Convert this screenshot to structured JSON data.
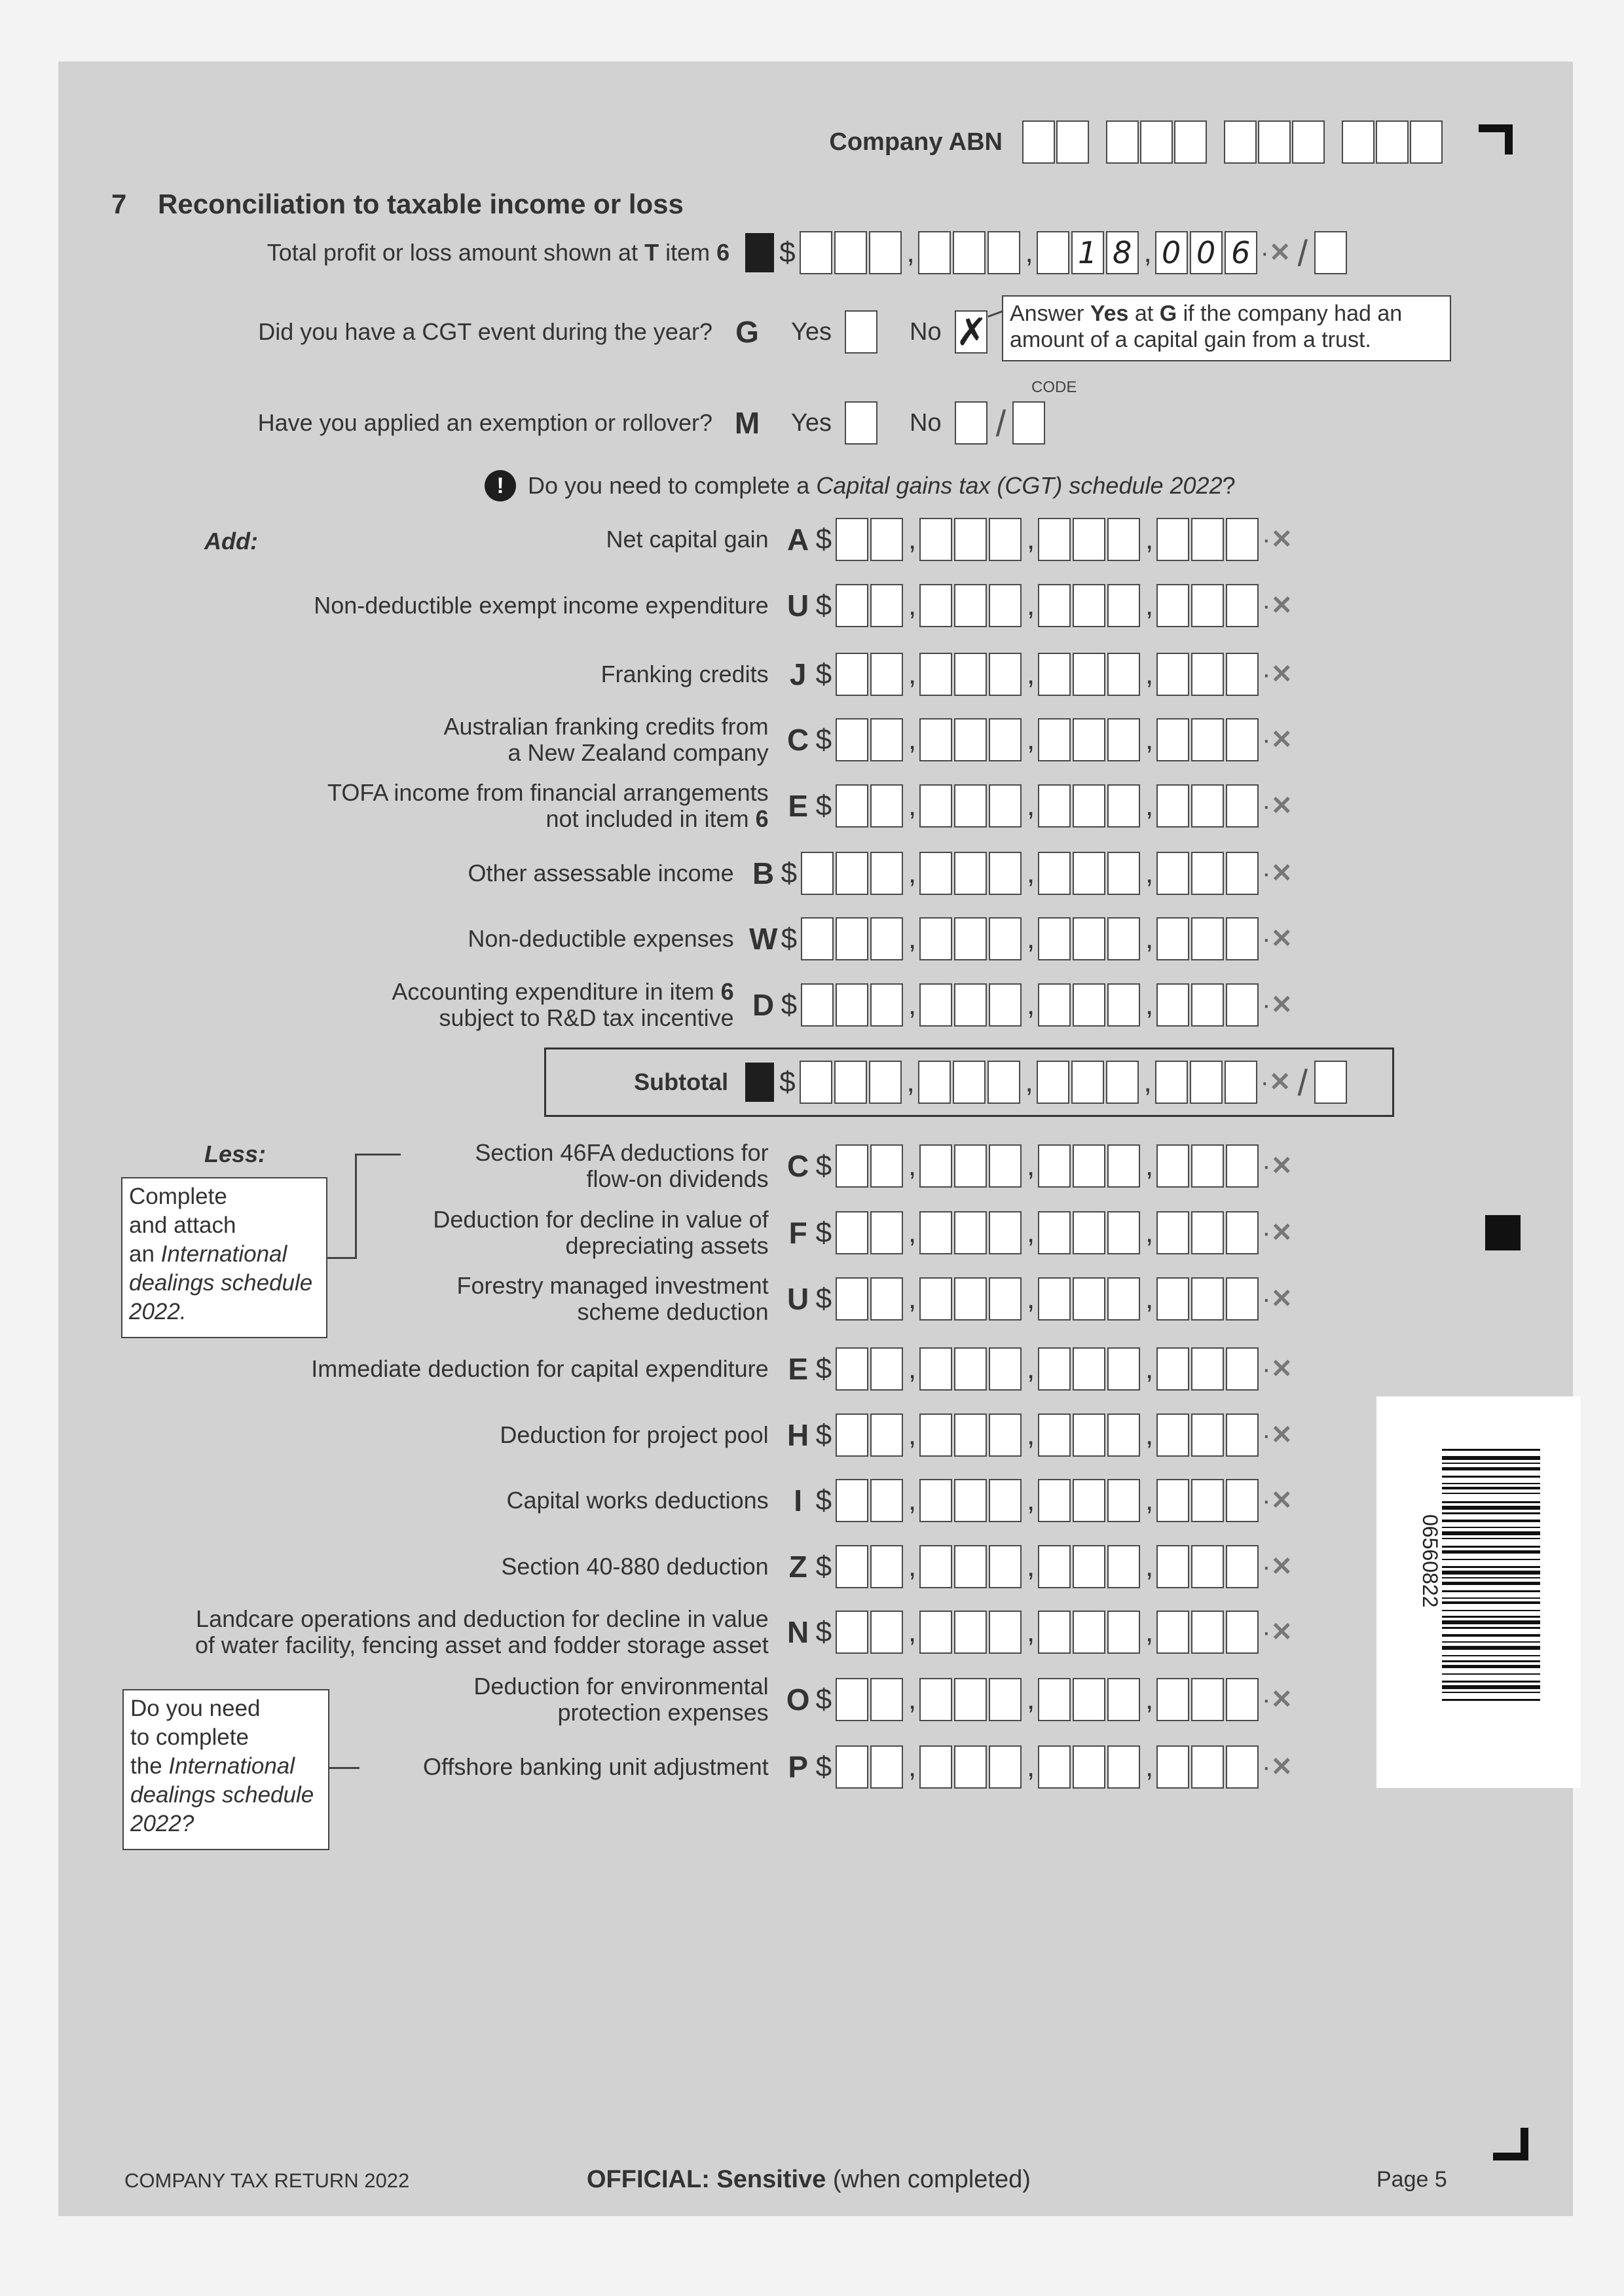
{
  "header": {
    "abn_label": "Company ABN",
    "abn_groups": [
      2,
      3,
      3,
      3
    ]
  },
  "section": {
    "number": "7",
    "title": "Reconciliation to taxable income or loss"
  },
  "total_profit": {
    "label_a": "Total profit or loss amount shown at ",
    "label_b": "T",
    "label_c": " item ",
    "label_d": "6",
    "digits": [
      [
        "",
        "",
        ""
      ],
      [
        "",
        "",
        ""
      ],
      [
        "",
        "1",
        "8"
      ],
      [
        "0",
        "0",
        "6"
      ]
    ],
    "value": "18,006"
  },
  "cgt_event": {
    "question": "Did you have a CGT event during the year?",
    "letter": "G",
    "yes": "Yes",
    "no": "No",
    "no_mark": "✗",
    "selected": "No",
    "note_a": "Answer ",
    "note_b": "Yes",
    "note_c": " at ",
    "note_d": "G",
    "note_e": " if the company had an amount of a capital gain from a trust."
  },
  "exemption": {
    "question": "Have you applied an exemption or rollover?",
    "letter": "M",
    "yes": "Yes",
    "no": "No",
    "code_label": "CODE"
  },
  "cgt_info": {
    "icon": "exclamation-circle-icon",
    "text_a": "Do you need to complete a ",
    "text_b": "Capital gains tax (CGT) schedule 2022",
    "text_c": "?"
  },
  "add_label": "Add:",
  "less_label": "Less:",
  "cents_dot": "·",
  "cents_x": "✕",
  "dollar": "$",
  "slash": "/",
  "add_rows": [
    {
      "letter": "A",
      "label": [
        [
          "Net capital gain"
        ]
      ],
      "groups": [
        2,
        3,
        3,
        3
      ]
    },
    {
      "letter": "U",
      "label": [
        [
          "Non-deductible exempt income expenditure"
        ]
      ],
      "groups": [
        2,
        3,
        3,
        3
      ]
    },
    {
      "letter": "J",
      "label": [
        [
          "Franking credits"
        ]
      ],
      "groups": [
        2,
        3,
        3,
        3
      ]
    },
    {
      "letter": "C",
      "label": [
        [
          "Australian franking credits from"
        ],
        [
          "a New Zealand company"
        ]
      ],
      "groups": [
        2,
        3,
        3,
        3
      ]
    },
    {
      "letter": "E",
      "label": [
        [
          "TOFA income from financial arrangements"
        ],
        [
          "not included in item ",
          "6"
        ]
      ],
      "groups": [
        2,
        3,
        3,
        3
      ]
    },
    {
      "letter": "B",
      "label": [
        [
          "Other assessable income"
        ]
      ],
      "groups": [
        3,
        3,
        3,
        3
      ]
    },
    {
      "letter": "W",
      "label": [
        [
          "Non-deductible expenses"
        ]
      ],
      "groups": [
        3,
        3,
        3,
        3
      ]
    },
    {
      "letter": "D",
      "label": [
        [
          "Accounting expenditure in item ",
          "6"
        ],
        [
          "subject to R&D tax incentive"
        ]
      ],
      "groups": [
        3,
        3,
        3,
        3
      ]
    }
  ],
  "subtotal": {
    "label": "Subtotal",
    "groups": [
      3,
      3,
      3,
      3
    ]
  },
  "less_rows": [
    {
      "letter": "C",
      "label": [
        [
          "Section 46FA deductions for"
        ],
        [
          "flow-on dividends"
        ]
      ],
      "groups": [
        2,
        3,
        3,
        3
      ]
    },
    {
      "letter": "F",
      "label": [
        [
          "Deduction for decline in value of"
        ],
        [
          "depreciating assets"
        ]
      ],
      "groups": [
        2,
        3,
        3,
        3
      ]
    },
    {
      "letter": "U",
      "label": [
        [
          "Forestry managed investment"
        ],
        [
          "scheme deduction"
        ]
      ],
      "groups": [
        2,
        3,
        3,
        3
      ]
    },
    {
      "letter": "E",
      "label": [
        [
          "Immediate deduction for capital expenditure"
        ]
      ],
      "groups": [
        2,
        3,
        3,
        3
      ]
    },
    {
      "letter": "H",
      "label": [
        [
          "Deduction for project pool"
        ]
      ],
      "groups": [
        2,
        3,
        3,
        3
      ]
    },
    {
      "letter": "I",
      "label": [
        [
          "Capital works deductions"
        ]
      ],
      "groups": [
        2,
        3,
        3,
        3
      ]
    },
    {
      "letter": "Z",
      "label": [
        [
          "Section 40-880 deduction"
        ]
      ],
      "groups": [
        2,
        3,
        3,
        3
      ]
    },
    {
      "letter": "N",
      "label": [
        [
          "Landcare operations and deduction for decline in value"
        ],
        [
          "of water facility, fencing asset and fodder storage asset"
        ]
      ],
      "groups": [
        2,
        3,
        3,
        3
      ]
    },
    {
      "letter": "O",
      "label": [
        [
          "Deduction for environmental"
        ],
        [
          "protection expenses"
        ]
      ],
      "groups": [
        2,
        3,
        3,
        3
      ]
    },
    {
      "letter": "P",
      "label": [
        [
          "Offshore banking unit adjustment"
        ]
      ],
      "groups": [
        2,
        3,
        3,
        3
      ]
    }
  ],
  "intl_note_1": {
    "a": "Complete",
    "b": "and attach",
    "c": "an ",
    "d": "International",
    "e": "dealings schedule",
    "f": "2022."
  },
  "intl_note_2": {
    "a": "Do you need",
    "b": "to complete",
    "c": "the ",
    "d": "International",
    "e": "dealings schedule",
    "f": "2022?"
  },
  "barcode": {
    "number": "06560822"
  },
  "footer": {
    "left": "COMPANY TAX RETURN 2022",
    "center_bold": "OFFICIAL: Sensitive",
    "center_rest": " (when completed)",
    "right": "Page 5"
  }
}
